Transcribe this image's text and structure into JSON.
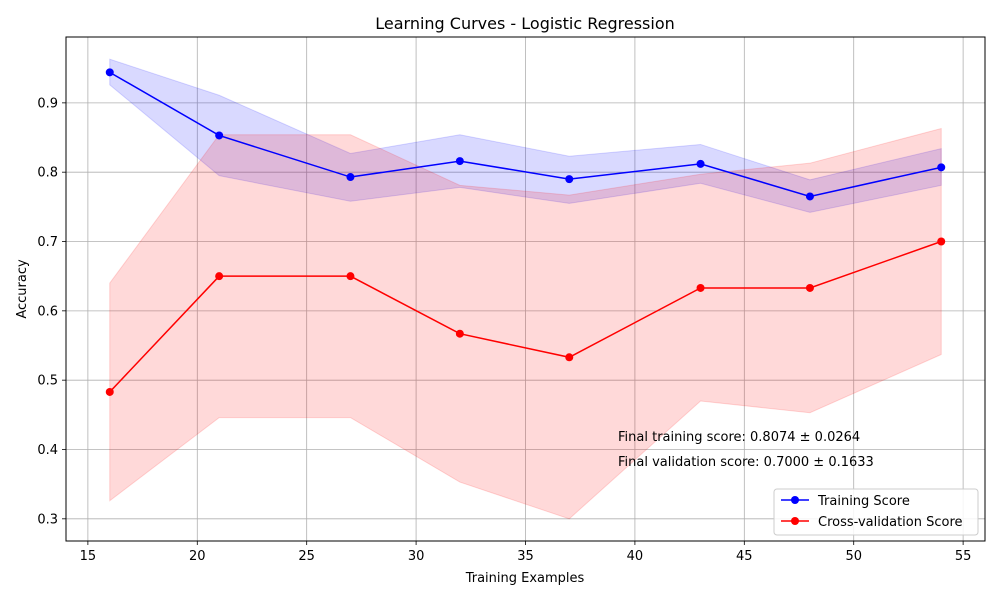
{
  "chart_data": {
    "type": "line",
    "title": "Learning Curves - Logistic Regression",
    "xlabel": "Training Examples",
    "ylabel": "Accuracy",
    "xlim": [
      14,
      56
    ],
    "ylim": [
      0.268,
      0.995
    ],
    "xticks": [
      15,
      20,
      25,
      30,
      35,
      40,
      45,
      50,
      55
    ],
    "yticks": [
      0.3,
      0.4,
      0.5,
      0.6,
      0.7,
      0.8,
      0.9
    ],
    "grid": true,
    "legend_position": "lower-right",
    "x": [
      16,
      21,
      27,
      32,
      37,
      43,
      48,
      54
    ],
    "series": [
      {
        "name": "Training Score",
        "color": "#0000ff",
        "values": [
          0.944,
          0.853,
          0.793,
          0.816,
          0.79,
          0.812,
          0.765,
          0.807
        ],
        "band_low": [
          0.926,
          0.795,
          0.758,
          0.778,
          0.755,
          0.784,
          0.742,
          0.781
        ],
        "band_high": [
          0.963,
          0.911,
          0.827,
          0.854,
          0.823,
          0.84,
          0.789,
          0.834
        ]
      },
      {
        "name": "Cross-validation Score",
        "color": "#ff0000",
        "values": [
          0.483,
          0.65,
          0.65,
          0.567,
          0.533,
          0.633,
          0.633,
          0.7
        ],
        "band_low": [
          0.326,
          0.446,
          0.446,
          0.353,
          0.3,
          0.47,
          0.453,
          0.537
        ],
        "band_high": [
          0.64,
          0.854,
          0.854,
          0.781,
          0.767,
          0.797,
          0.813,
          0.863
        ]
      }
    ],
    "annotations": [
      "Final training score: 0.8074 ± 0.0264",
      "Final validation score: 0.7000 ± 0.1633"
    ]
  }
}
